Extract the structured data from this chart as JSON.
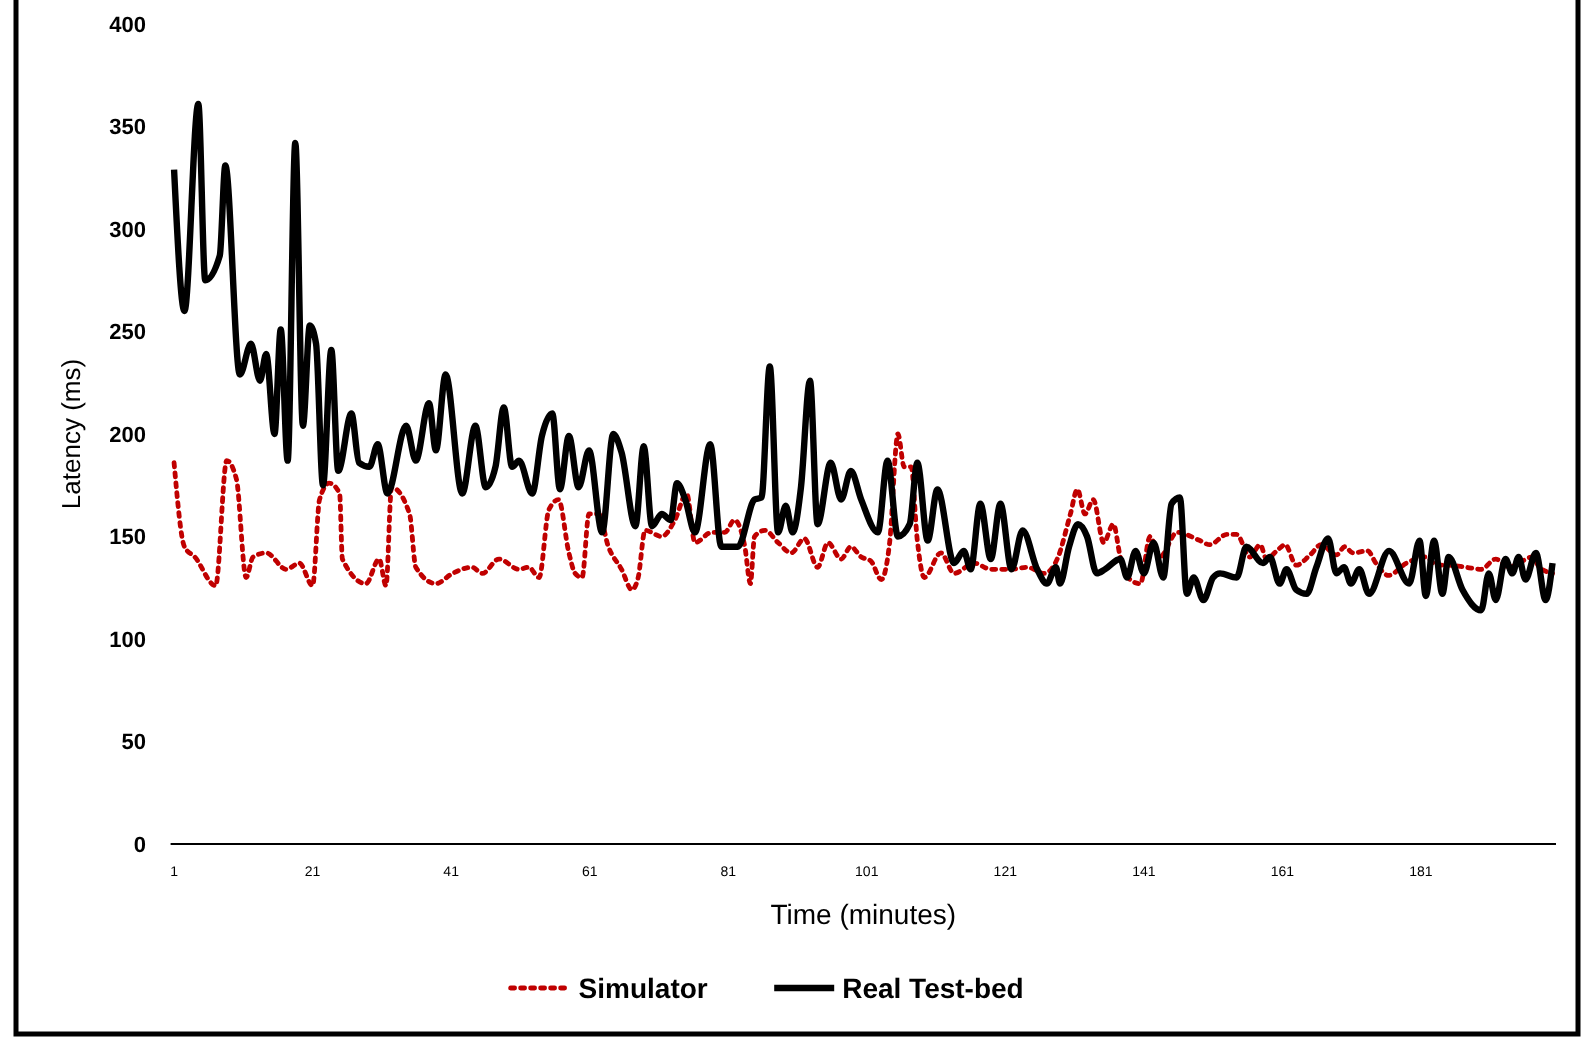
{
  "chart_data": {
    "type": "line",
    "xlabel": "Time (minutes)",
    "ylabel": "Latency (ms)",
    "xlim": [
      0.5,
      200.5
    ],
    "xticks": [
      1,
      21,
      41,
      61,
      81,
      101,
      121,
      141,
      161,
      181
    ],
    "ylim": [
      0,
      400
    ],
    "yticks": [
      0,
      50,
      100,
      150,
      200,
      250,
      300,
      350,
      400
    ],
    "legend": "bottom",
    "series": [
      {
        "name": "Simulator",
        "color": "#c00000",
        "line_style": "dotted",
        "x": [
          1,
          2.5,
          4,
          7,
          8.6,
          10,
          11.4,
          12.4,
          14.3,
          17.2,
          19.1,
          21,
          22,
          23.4,
          24.9,
          25.3,
          28.7,
          30.6,
          31.6,
          32.4,
          35,
          35.9,
          38.8,
          41.2,
          44,
          45.5,
          47.9,
          50.8,
          52.2,
          53.7,
          55.1,
          56.5,
          58,
          58.9,
          59.9,
          60.9,
          62.3,
          63.7,
          65.6,
          67.1,
          68,
          69,
          71.4,
          73.3,
          75,
          76.2,
          78.6,
          80.5,
          81.9,
          83.4,
          84.2,
          84.8,
          86.3,
          88.2,
          90.1,
          92,
          93.9,
          95.4,
          97.3,
          98.7,
          100.2,
          101.6,
          103.1,
          104.3,
          105.5,
          106.4,
          107.4,
          108.3,
          109.3,
          111.7,
          113.6,
          116.5,
          118.9,
          121.8,
          124.2,
          126.6,
          128.5,
          130.4,
          131.4,
          132.5,
          133.7,
          135.2,
          136.6,
          137.6,
          139,
          140.5,
          141.9,
          143.3,
          145.8,
          149.1,
          150.5,
          153,
          154.4,
          156.3,
          157.8,
          158.7,
          160.2,
          161.4,
          163,
          165,
          166.6,
          168.8,
          170,
          171.2,
          173.3,
          174.5,
          176.3,
          178.9,
          181.7,
          183.3,
          185,
          187.5,
          189.7,
          191.8,
          193.7,
          195.6,
          197.1,
          198.1,
          200
        ],
        "values": [
          186,
          145,
          140,
          126,
          187,
          178,
          130,
          140,
          142,
          134,
          137,
          126,
          168,
          176,
          171,
          139,
          127,
          139,
          126,
          174,
          161,
          135,
          127,
          132,
          135,
          132,
          139,
          134,
          135,
          130,
          163,
          168,
          142,
          132,
          130,
          161,
          161,
          145,
          134,
          124,
          130,
          153,
          150,
          158,
          171,
          147,
          152,
          152,
          158,
          145,
          127,
          150,
          153,
          147,
          142,
          149,
          135,
          147,
          139,
          145,
          140,
          138,
          129,
          147,
          200,
          184,
          184,
          148,
          130,
          142,
          132,
          137,
          134,
          134,
          135,
          132,
          139,
          161,
          173,
          161,
          168,
          147,
          156,
          140,
          129,
          127,
          150,
          140,
          152,
          148,
          146,
          151,
          151,
          140,
          146,
          139,
          143,
          146,
          136,
          141,
          146,
          141,
          145,
          142,
          143,
          137,
          131,
          137,
          140,
          136,
          136,
          135,
          134,
          139,
          135,
          138,
          140,
          135,
          132
        ]
      },
      {
        "name": "Real Test-bed",
        "color": "#000000",
        "line_style": "solid",
        "x": [
          1,
          2.5,
          4.5,
          5.5,
          7.6,
          8.4,
          10.5,
          12.1,
          13.4,
          14.3,
          15.5,
          16.4,
          17.4,
          18.5,
          19.6,
          20.6,
          21.5,
          22.5,
          23.7,
          24.7,
          26.6,
          27.7,
          29.2,
          30.4,
          31.8,
          34.5,
          35.9,
          37.8,
          38.8,
          40.2,
          42.6,
          44.5,
          46,
          47.4,
          48.6,
          49.8,
          50.8,
          52.7,
          54.1,
          55.6,
          56.7,
          58,
          59.4,
          60.9,
          62.8,
          64.4,
          65.6,
          67.6,
          68.8,
          70,
          71.4,
          72.7,
          73.6,
          74.8,
          76.2,
          78.4,
          80,
          82.4,
          84.8,
          85.8,
          87,
          88.2,
          89.3,
          90.3,
          91.5,
          92.8,
          93.9,
          95.8,
          97.3,
          98.7,
          100.2,
          102.6,
          104,
          105.5,
          107.2,
          108.3,
          109.8,
          111.2,
          113.6,
          115,
          116,
          117.4,
          118.9,
          120.3,
          121.9,
          123.5,
          125.6,
          127,
          128.3,
          128.9,
          130.2,
          131.5,
          132.8,
          134.2,
          135.4,
          137.6,
          138.6,
          139.8,
          141,
          142.4,
          143.8,
          145,
          146.2,
          147.2,
          148.2,
          149.6,
          151,
          152,
          154.4,
          155.8,
          158.2,
          159.2,
          160.6,
          161.6,
          163,
          164.5,
          165.9,
          167.6,
          168.8,
          169.9,
          170.9,
          172.1,
          173.5,
          176.4,
          179.3,
          180.8,
          181.7,
          182.9,
          184.1,
          185,
          187,
          189.7,
          190.8,
          191.8,
          193.2,
          194.2,
          195.1,
          196.1,
          197.6,
          199,
          200
        ],
        "values": [
          329,
          260,
          361,
          275,
          287,
          331,
          229,
          244,
          226,
          239,
          200,
          251,
          187,
          342,
          204,
          253,
          244,
          175,
          241,
          182,
          210,
          186,
          184,
          195,
          171,
          204,
          187,
          215,
          192,
          229,
          171,
          204,
          174,
          184,
          213,
          184,
          187,
          171,
          199,
          210,
          173,
          199,
          174,
          192,
          152,
          200,
          191,
          155,
          194,
          155,
          161,
          158,
          176,
          168,
          152,
          195,
          145,
          145,
          168,
          169,
          233,
          152,
          165,
          152,
          174,
          226,
          156,
          186,
          168,
          182,
          168,
          152,
          187,
          150,
          156,
          186,
          148,
          173,
          137,
          143,
          134,
          166,
          139,
          166,
          134,
          153,
          134,
          127,
          135,
          127,
          145,
          156,
          150,
          132,
          134,
          139,
          130,
          143,
          132,
          147,
          130,
          166,
          169,
          122,
          130,
          119,
          130,
          132,
          130,
          145,
          137,
          140,
          127,
          134,
          124,
          122,
          135,
          149,
          132,
          135,
          127,
          134,
          122,
          143,
          127,
          148,
          121,
          148,
          122,
          140,
          124,
          114,
          132,
          119,
          139,
          132,
          140,
          129,
          142,
          119,
          137
        ]
      }
    ]
  }
}
